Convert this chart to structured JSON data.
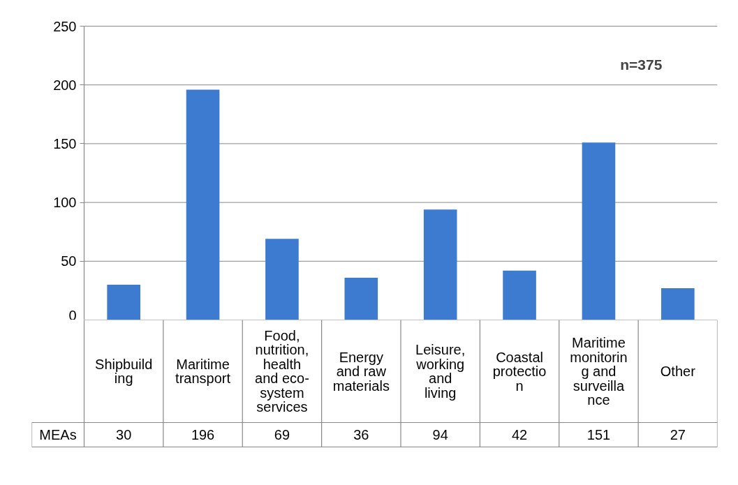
{
  "chart_data": {
    "type": "bar",
    "categories": [
      "Shipbuilding",
      "Maritime transport",
      "Food, nutrition, health and eco-system services",
      "Energy and raw materials",
      "Leisure, working and living",
      "Coastal protection",
      "Maritime monitoring and surveillance",
      "Other"
    ],
    "series": [
      {
        "name": "MEAs",
        "color": "#3c7bcf",
        "values": [
          30,
          196,
          69,
          36,
          94,
          42,
          151,
          27
        ]
      }
    ],
    "ylim": [
      0,
      250
    ],
    "yticks": [
      0,
      50,
      100,
      150,
      200,
      250
    ],
    "grid": "y",
    "data_labels": true,
    "legend": false,
    "annotations": [
      "n=375"
    ]
  }
}
